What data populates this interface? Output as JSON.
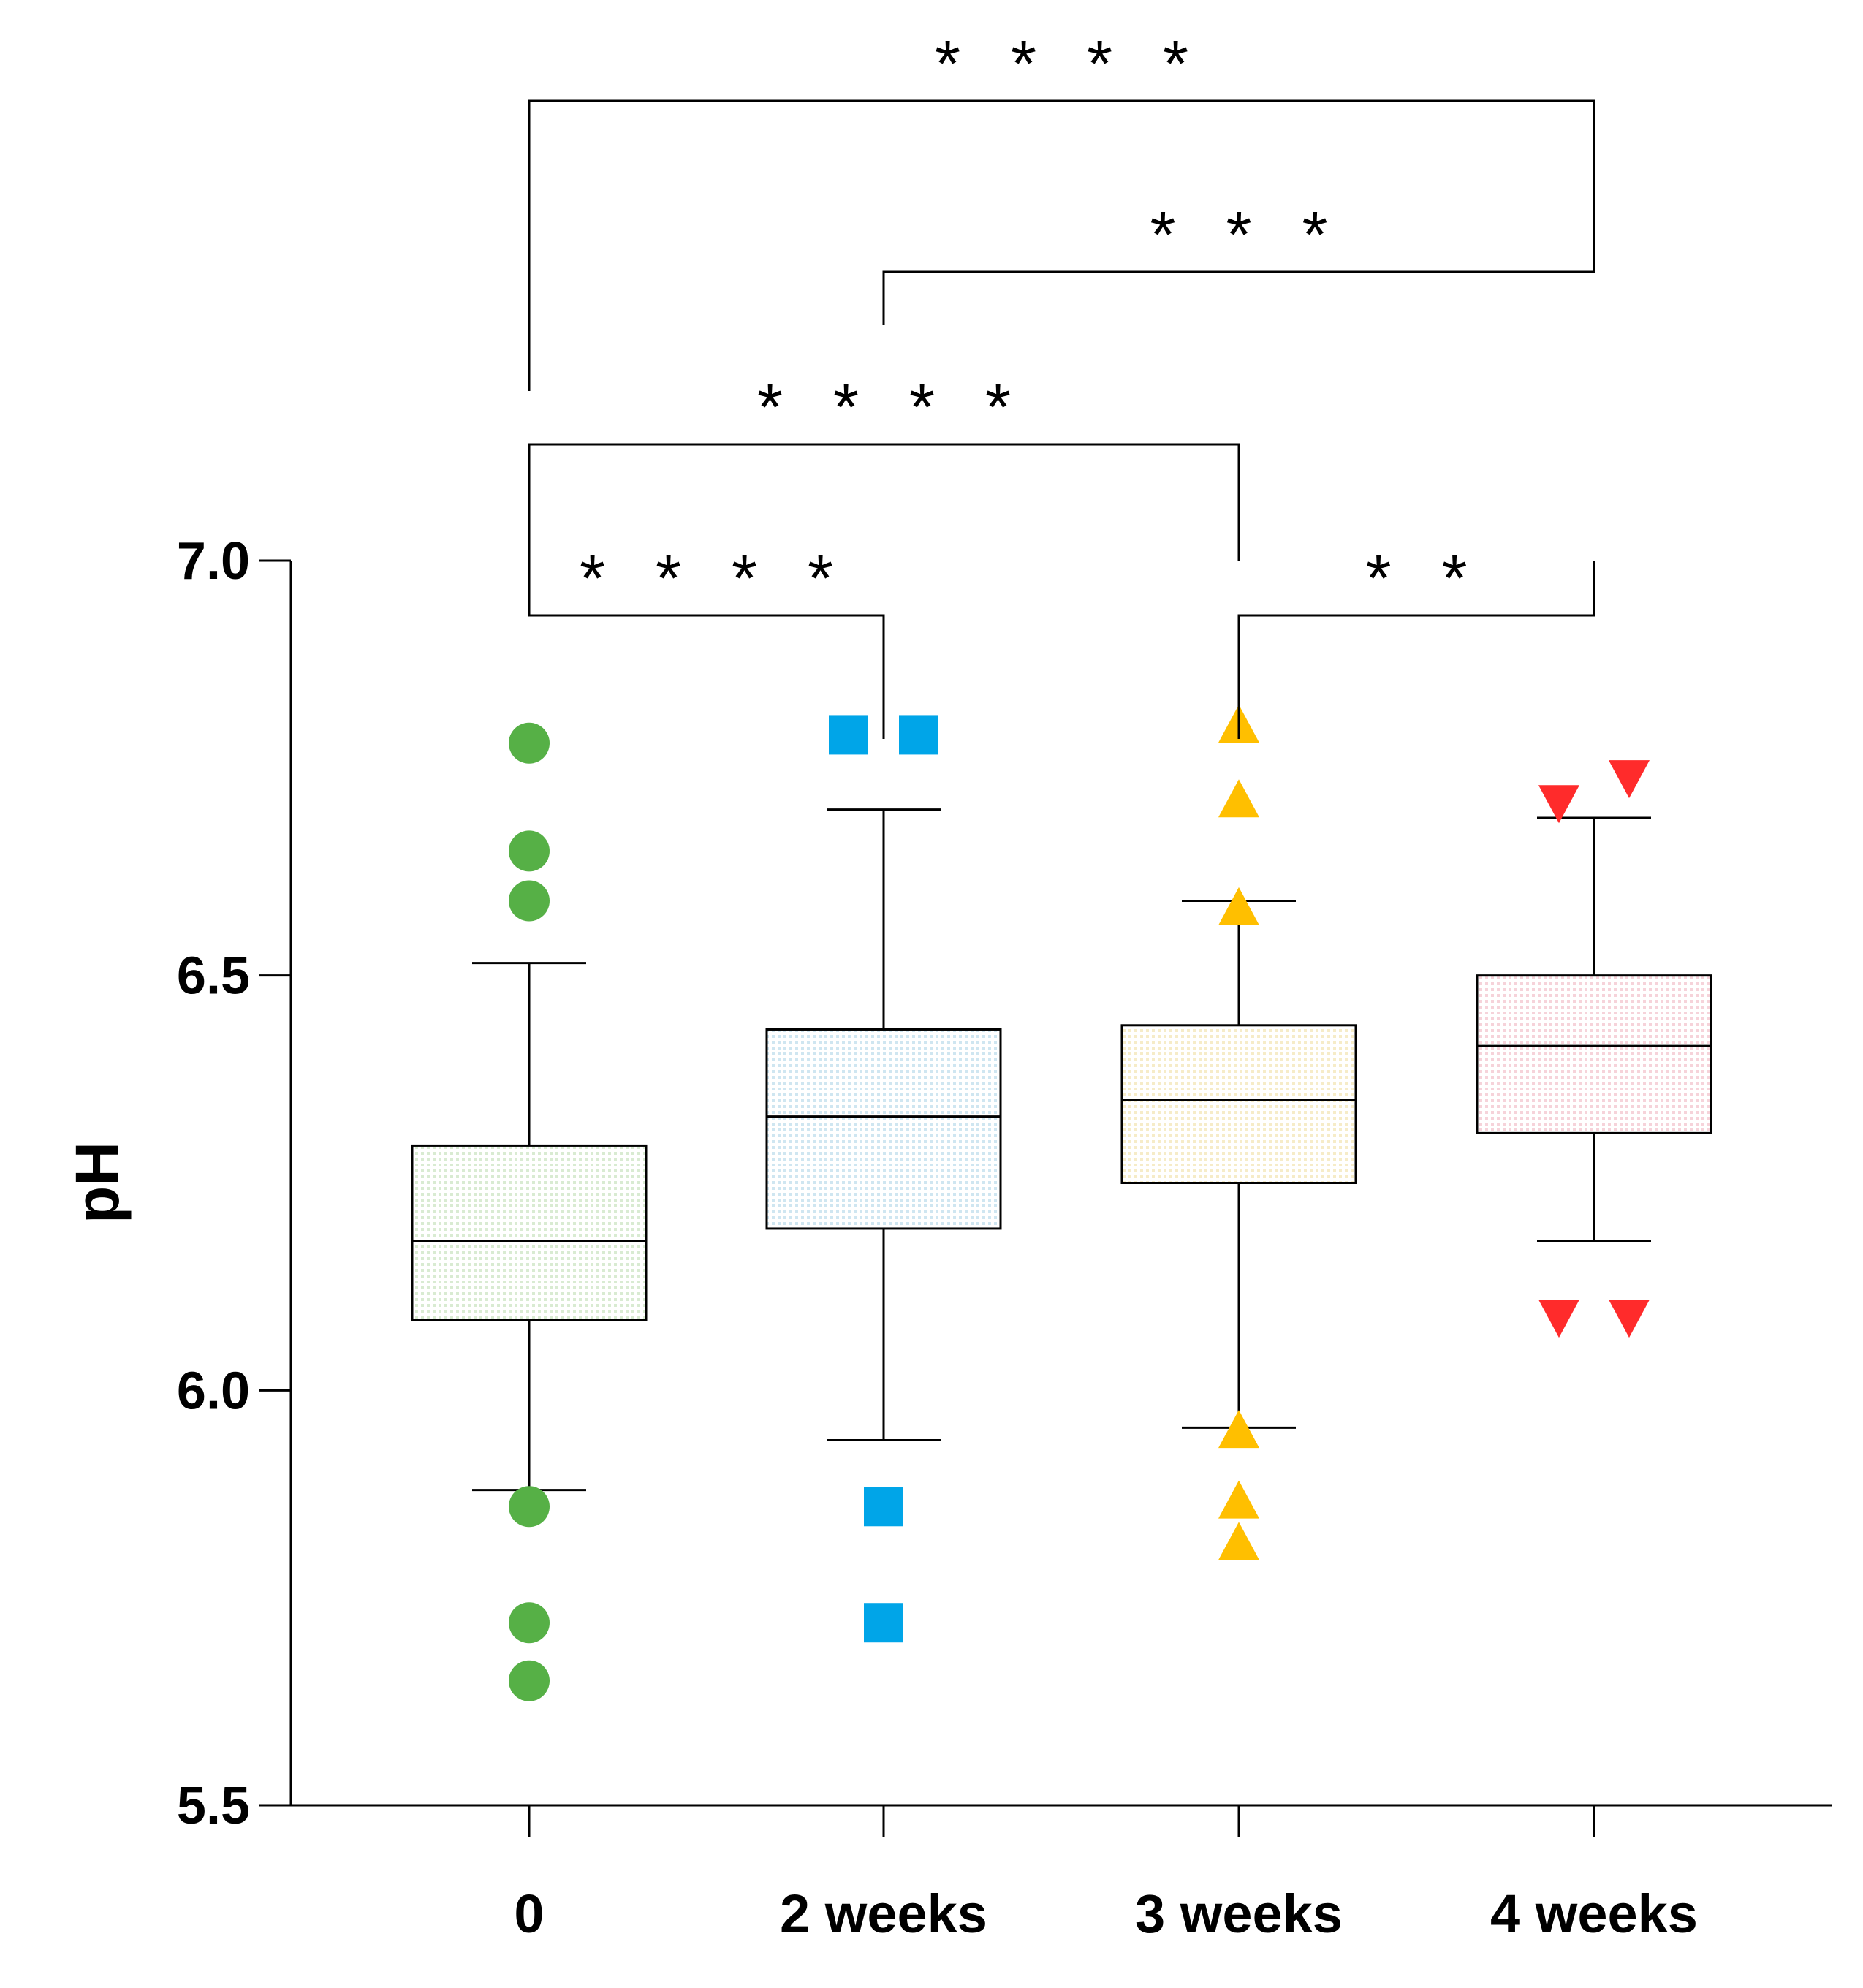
{
  "chart_data": {
    "type": "box",
    "ylabel": "pH",
    "xlabel": "",
    "ylim": [
      5.5,
      7.0
    ],
    "yticks": [
      "5.5",
      "6.0",
      "6.5",
      "7.0"
    ],
    "categories": [
      "0",
      "2 weeks",
      "3 weeks",
      "4 weeks"
    ],
    "boxes": [
      {
        "category": "0",
        "whisker_low": 5.88,
        "q1": 6.085,
        "median": 6.18,
        "q3": 6.295,
        "whisker_high": 6.515,
        "outliers": [
          {
            "x_offset": 0,
            "y": 6.78
          },
          {
            "x_offset": 0,
            "y": 6.65
          },
          {
            "x_offset": 0,
            "y": 6.59
          },
          {
            "x_offset": 0,
            "y": 5.86
          },
          {
            "x_offset": 0,
            "y": 5.72
          },
          {
            "x_offset": 0,
            "y": 5.65
          }
        ],
        "marker": "circle",
        "color": "#56b046",
        "fill": "#eef6ea"
      },
      {
        "category": "2 weeks",
        "whisker_low": 5.94,
        "q1": 6.195,
        "median": 6.33,
        "q3": 6.435,
        "whisker_high": 6.7,
        "outliers": [
          {
            "x_offset": -1,
            "y": 6.79
          },
          {
            "x_offset": 1,
            "y": 6.79
          },
          {
            "x_offset": 0,
            "y": 5.86
          },
          {
            "x_offset": 0,
            "y": 5.72
          }
        ],
        "marker": "square",
        "color": "#00a5e8",
        "fill": "#e6f3f8"
      },
      {
        "category": "3 weeks",
        "whisker_low": 5.955,
        "q1": 6.25,
        "median": 6.35,
        "q3": 6.44,
        "whisker_high": 6.59,
        "outliers": [
          {
            "x_offset": 0,
            "y": 6.8
          },
          {
            "x_offset": 0,
            "y": 6.71
          },
          {
            "x_offset": 0,
            "y": 6.58
          },
          {
            "x_offset": 0,
            "y": 5.95
          },
          {
            "x_offset": 0,
            "y": 5.865
          },
          {
            "x_offset": 0,
            "y": 5.815
          }
        ],
        "marker": "triangle-up",
        "color": "#ffbf00",
        "fill": "#fdf8e8"
      },
      {
        "category": "4 weeks",
        "whisker_low": 6.18,
        "q1": 6.31,
        "median": 6.415,
        "q3": 6.5,
        "whisker_high": 6.69,
        "outliers": [
          {
            "x_offset": -1,
            "y": 6.71
          },
          {
            "x_offset": 1,
            "y": 6.74
          },
          {
            "x_offset": -1,
            "y": 6.09
          },
          {
            "x_offset": 1,
            "y": 6.09
          }
        ],
        "marker": "triangle-down",
        "color": "#ff2b2b",
        "fill": "#fcecef"
      }
    ],
    "comparisons": [
      {
        "from": "0",
        "to": "2 weeks",
        "label": "* * * *"
      },
      {
        "from": "3 weeks",
        "to": "4 weeks",
        "label": "* *"
      },
      {
        "from": "0",
        "to": "3 weeks",
        "label": "* * * *"
      },
      {
        "from": "2 weeks",
        "to": "4 weeks",
        "label": "* * *"
      },
      {
        "from": "0",
        "to": "4 weeks",
        "label": "* * * *"
      }
    ]
  }
}
